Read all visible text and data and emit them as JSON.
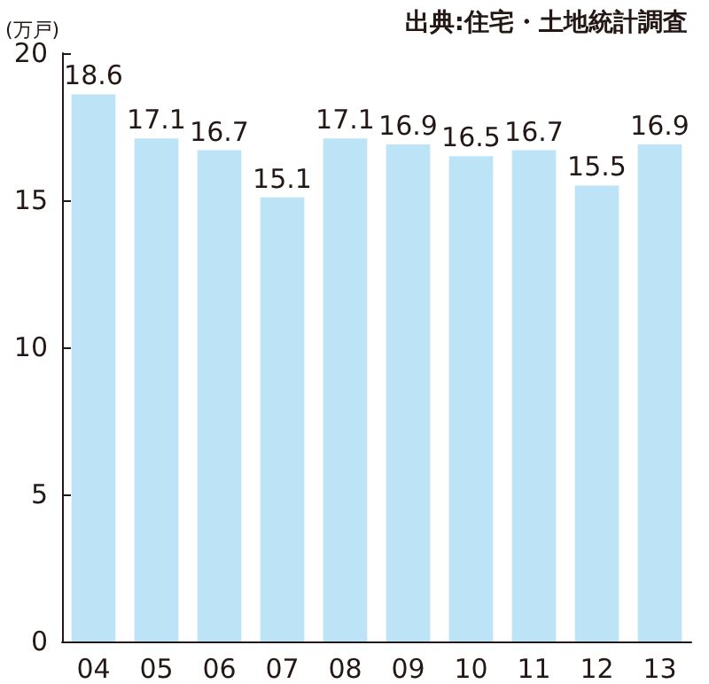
{
  "chart_data": {
    "type": "bar",
    "ylabel": "(万戸)",
    "annotations": [
      "出典:住宅・土地統計調査"
    ],
    "categories": [
      "04",
      "05",
      "06",
      "07",
      "08",
      "09",
      "10",
      "11",
      "12",
      "13"
    ],
    "values": [
      18.6,
      17.1,
      16.7,
      15.1,
      17.1,
      16.9,
      16.5,
      16.7,
      15.5,
      16.9
    ],
    "color": "#bde4f6",
    "ylim": [
      0,
      20
    ],
    "yticks": [
      0,
      5,
      10,
      15,
      20
    ],
    "data_labels": true
  }
}
